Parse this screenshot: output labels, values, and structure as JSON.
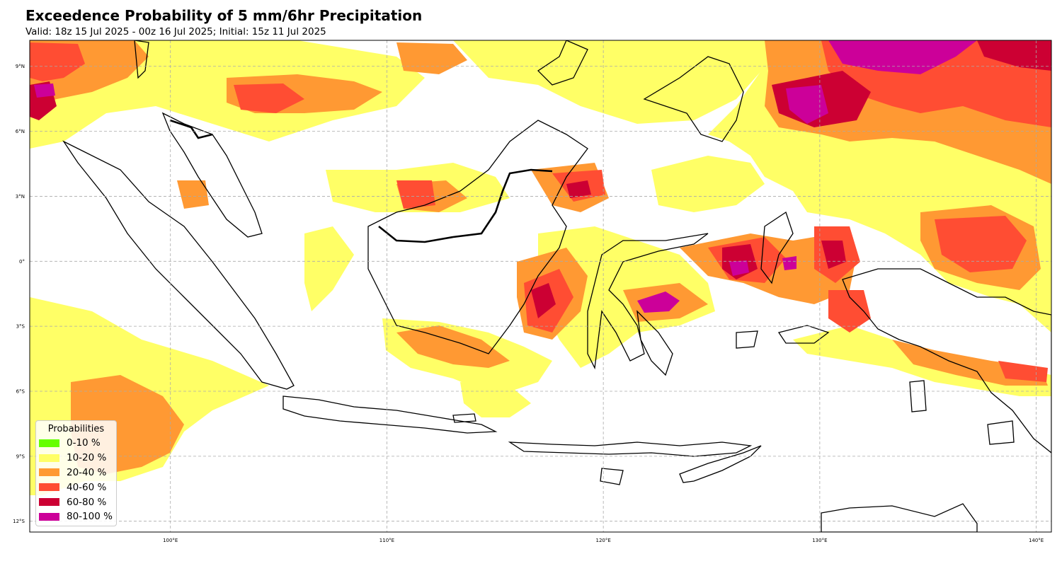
{
  "title": "Exceedence Probability of 5 mm/6hr Precipitation",
  "subtitle": "Valid: 18z 15 Jul 2025 - 00z 16 Jul 2025; Initial: 15z 11 Jul 2025",
  "map": {
    "lon_range": [
      93.5,
      140.7
    ],
    "lat_range": [
      -12.5,
      10.2
    ],
    "gridlines": true,
    "lon_ticks": [
      {
        "value": 100,
        "label": "100°E"
      },
      {
        "value": 110,
        "label": "110°E"
      },
      {
        "value": 120,
        "label": "120°E"
      },
      {
        "value": 130,
        "label": "130°E"
      },
      {
        "value": 140,
        "label": "140°E"
      }
    ],
    "lat_ticks": [
      {
        "value": 9,
        "label": "9°N"
      },
      {
        "value": 6,
        "label": "6°N"
      },
      {
        "value": 3,
        "label": "3°N"
      },
      {
        "value": 0,
        "label": "0°"
      },
      {
        "value": -3,
        "label": "3°S"
      },
      {
        "value": -6,
        "label": "6°S"
      },
      {
        "value": -9,
        "label": "9°S"
      },
      {
        "value": -12,
        "label": "12°S"
      }
    ]
  },
  "legend": {
    "title": "Probabilities",
    "placement": "lower-left",
    "items": [
      {
        "label": "0-10 %",
        "color": "#66ff00"
      },
      {
        "label": "10-20 %",
        "color": "#ffff66"
      },
      {
        "label": "20-40 %",
        "color": "#ff9933"
      },
      {
        "label": "40-60 %",
        "color": "#ff4d33"
      },
      {
        "label": "60-80 %",
        "color": "#cc0033"
      },
      {
        "label": "80-100 %",
        "color": "#cc0099"
      }
    ]
  }
}
